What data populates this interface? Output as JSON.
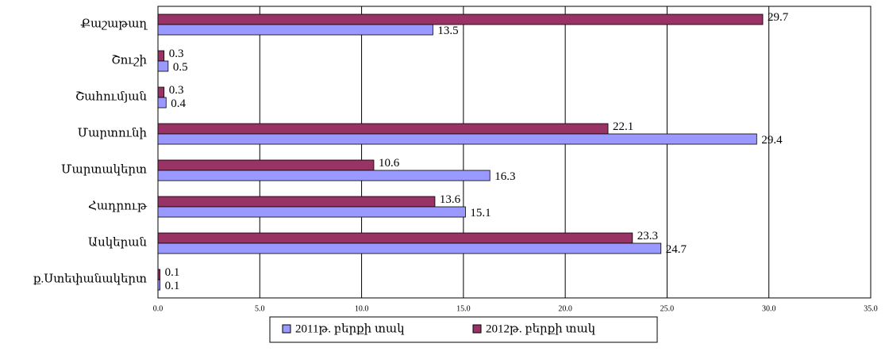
{
  "chart_data": {
    "type": "bar",
    "orientation": "horizontal",
    "categories": [
      "Քաշաթաղ",
      "Շուշի",
      "Շահումյան",
      "Մարտունի",
      "Մարտակերտ",
      "Հադրութ",
      "Ասկերան",
      "ք.Ստեփանակերտ"
    ],
    "series": [
      {
        "name": "2011թ. բերքի տակ",
        "color": "#9999ff",
        "values": [
          13.5,
          0.5,
          0.4,
          29.4,
          16.3,
          15.1,
          24.7,
          0.1
        ]
      },
      {
        "name": "2012թ. բերքի տակ",
        "color": "#993366",
        "values": [
          29.7,
          0.3,
          0.3,
          22.1,
          10.6,
          13.6,
          23.3,
          0.1
        ]
      }
    ],
    "xlim": [
      0,
      35
    ],
    "xticks": [
      {
        "value": 0,
        "label": "0.0"
      },
      {
        "value": 5,
        "label": "5.0"
      },
      {
        "value": 10,
        "label": "10.0"
      },
      {
        "value": 15,
        "label": "15.0"
      },
      {
        "value": 20,
        "label": "20.0"
      },
      {
        "value": 25,
        "label": "25.0"
      },
      {
        "value": 30,
        "label": "30.0"
      },
      {
        "value": 35,
        "label": "35.0"
      }
    ],
    "grid": true,
    "legend": "bottom"
  }
}
